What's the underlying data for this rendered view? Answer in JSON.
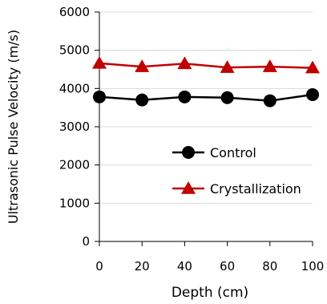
{
  "chart_data": {
    "type": "line",
    "title": "",
    "xlabel": "Depth (cm)",
    "ylabel": "Ultrasonic Pulse Velocity (m/s)",
    "x": [
      0,
      20,
      40,
      60,
      80,
      100
    ],
    "xticks": [
      "0",
      "20",
      "40",
      "60",
      "80",
      "100"
    ],
    "yticks": [
      "0",
      "1000",
      "2000",
      "3000",
      "4000",
      "5000",
      "6000"
    ],
    "xlim": [
      0,
      100
    ],
    "ylim": [
      0,
      6000
    ],
    "grid": "horizontal",
    "legend_position": "right-center",
    "series": [
      {
        "name": "Control",
        "values": [
          3780,
          3700,
          3780,
          3760,
          3680,
          3840
        ],
        "color": "#000000",
        "marker": "circle"
      },
      {
        "name": "Crystallization",
        "values": [
          4660,
          4570,
          4650,
          4550,
          4570,
          4540
        ],
        "color": "#c00000",
        "marker": "triangle"
      }
    ]
  }
}
